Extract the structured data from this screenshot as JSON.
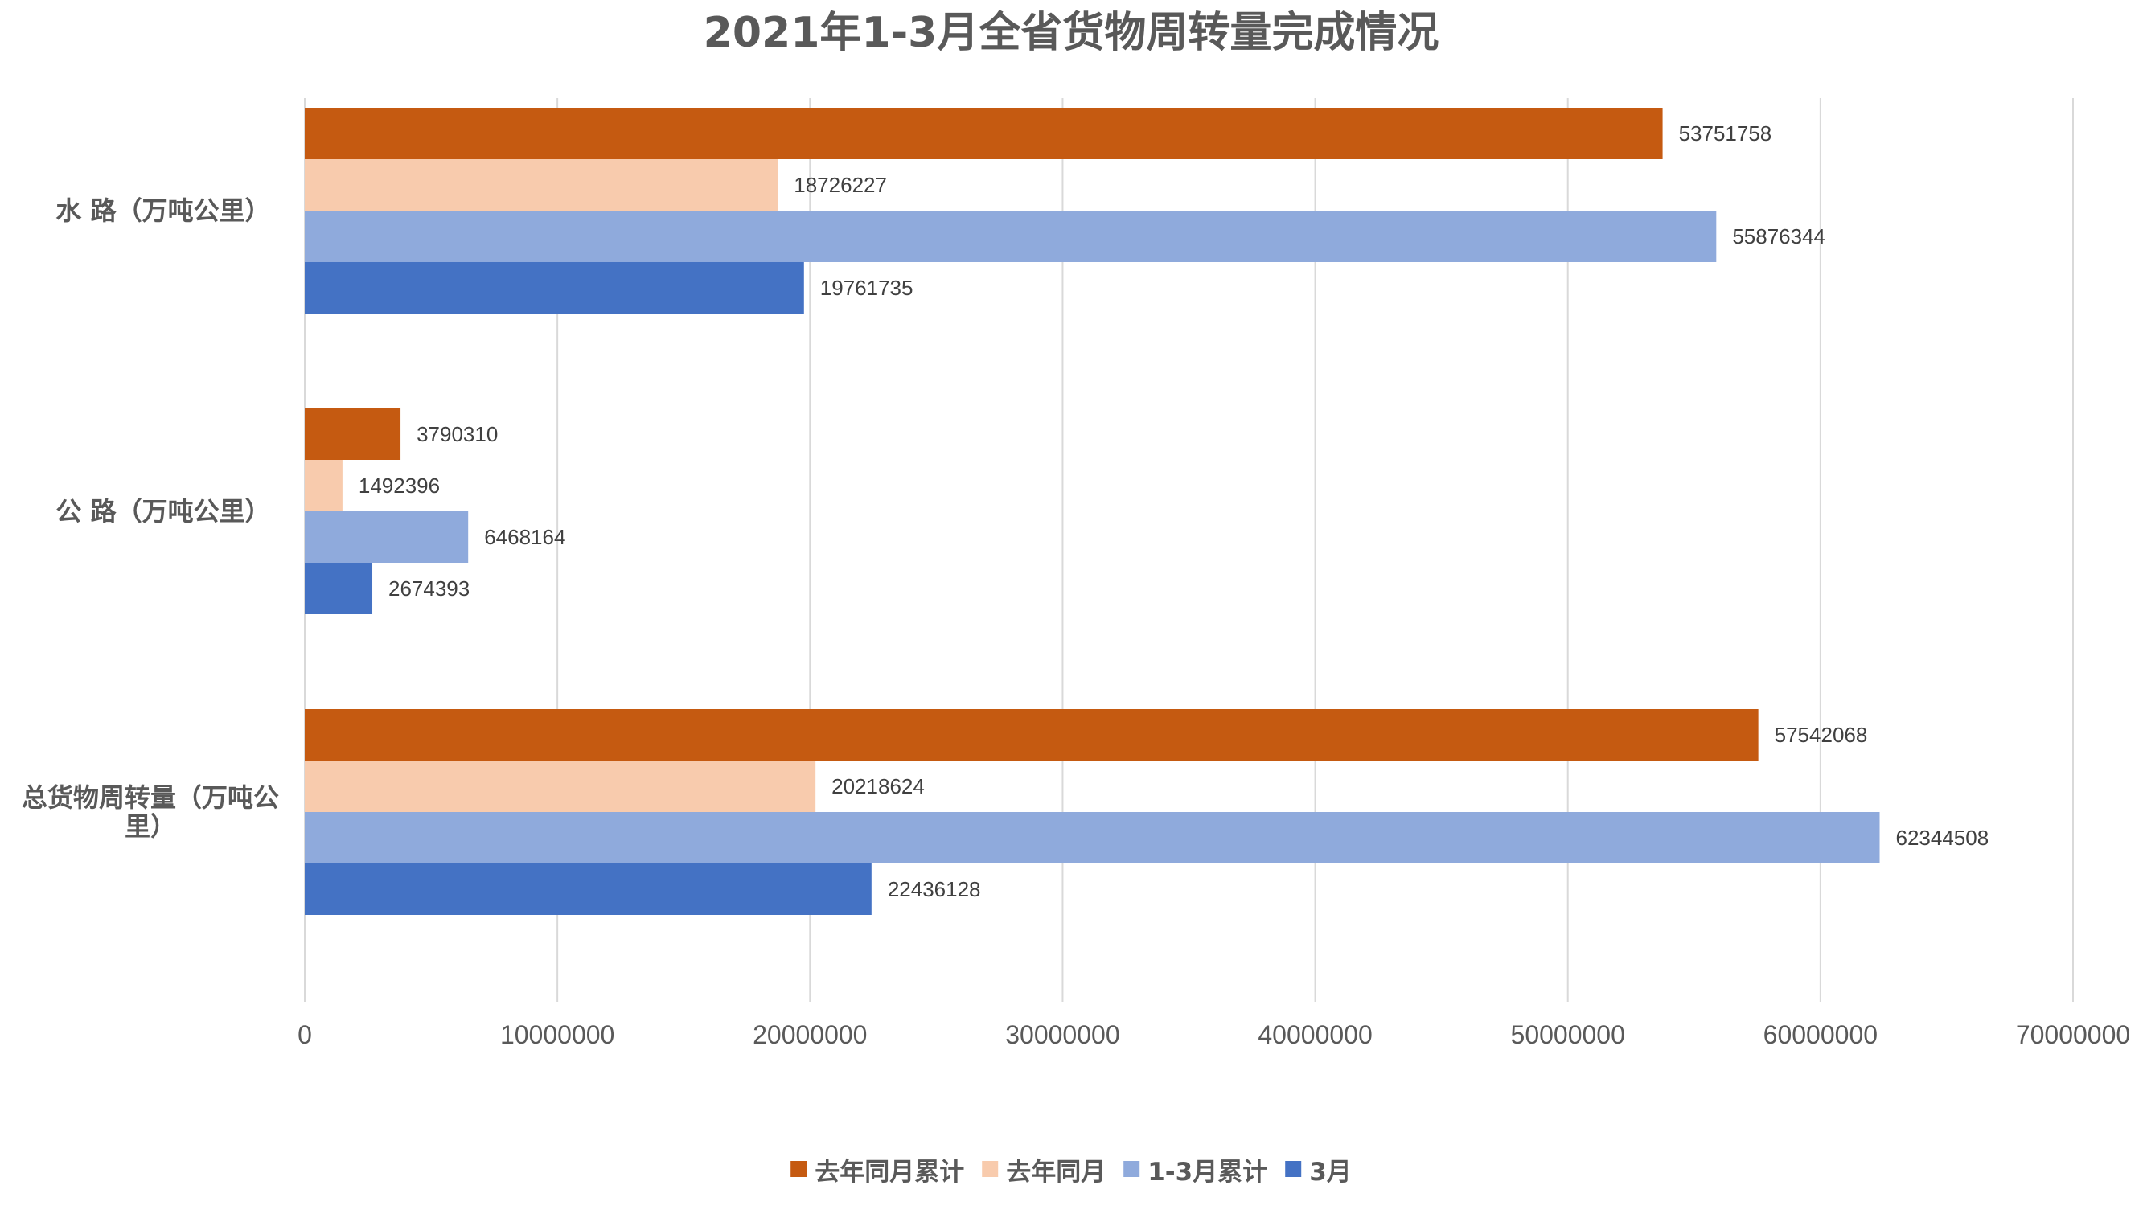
{
  "chart_data": {
    "type": "bar",
    "orientation": "horizontal",
    "title": "2021年1-3月全省货物周转量完成情况",
    "categories": [
      "水 路（万吨公里）",
      "公 路（万吨公里）",
      "总货物周转量（万吨公里）"
    ],
    "category_lines": [
      [
        "水 路（万吨公里）"
      ],
      [
        "公 路（万吨公里）"
      ],
      [
        "总货物周转量（万吨公",
        "里）"
      ]
    ],
    "series": [
      {
        "name": "去年同月累计",
        "color": "#C55A11",
        "values": [
          53751758,
          3790310,
          57542068
        ]
      },
      {
        "name": "去年同月",
        "color": "#F8CBAD",
        "values": [
          18726227,
          1492396,
          20218624
        ]
      },
      {
        "name": "1-3月累计",
        "color": "#8FAADC",
        "values": [
          55876344,
          6468164,
          62344508
        ]
      },
      {
        "name": "3月",
        "color": "#4472C4",
        "values": [
          19761735,
          2674393,
          22436128
        ]
      }
    ],
    "xlim": [
      0,
      70000000
    ],
    "x_ticks": [
      0,
      10000000,
      20000000,
      30000000,
      40000000,
      50000000,
      60000000,
      70000000
    ],
    "x_tick_labels": [
      "0",
      "10000000",
      "20000000",
      "30000000",
      "40000000",
      "50000000",
      "60000000",
      "70000000"
    ],
    "xlabel": "",
    "ylabel": "",
    "grid": "vertical",
    "data_labels": true,
    "legend_position": "bottom"
  }
}
